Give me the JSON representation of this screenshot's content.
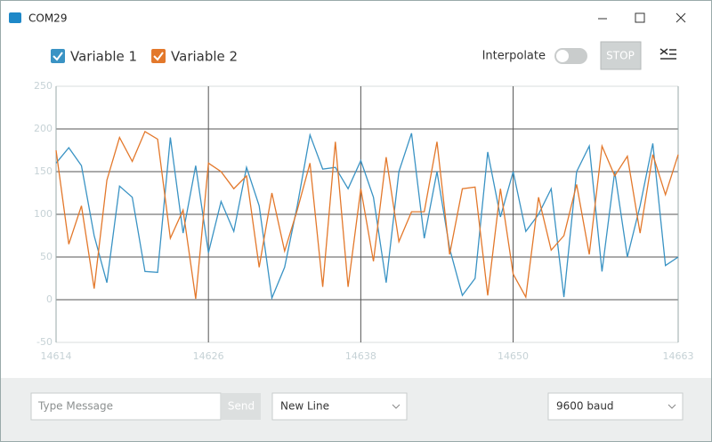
{
  "window": {
    "title": "COM29"
  },
  "toolbar": {
    "interpolate": "Interpolate",
    "stop": "STOP"
  },
  "chart_data": {
    "type": "line",
    "x": [
      14614,
      14615,
      14616,
      14617,
      14618,
      14619,
      14620,
      14621,
      14622,
      14623,
      14624,
      14625,
      14626,
      14627,
      14628,
      14629,
      14630,
      14631,
      14632,
      14633,
      14634,
      14635,
      14636,
      14637,
      14638,
      14639,
      14640,
      14641,
      14642,
      14643,
      14644,
      14645,
      14646,
      14647,
      14648,
      14649,
      14650,
      14651,
      14652,
      14653,
      14654,
      14655,
      14656,
      14657,
      14658,
      14659,
      14660,
      14661,
      14662,
      14663
    ],
    "series": [
      {
        "name": "Variable 1",
        "color": "#3a93c4",
        "values": [
          160,
          178,
          157,
          75,
          20,
          133,
          120,
          33,
          32,
          190,
          78,
          157,
          55,
          115,
          80,
          155,
          110,
          2,
          38,
          110,
          193,
          153,
          155,
          130,
          163,
          120,
          20,
          150,
          195,
          72,
          150,
          60,
          5,
          25,
          173,
          97,
          150,
          80,
          100,
          130,
          3,
          150,
          180,
          33,
          150,
          50,
          110,
          183,
          40,
          50
        ]
      },
      {
        "name": "Variable 2",
        "color": "#e3782b",
        "values": [
          175,
          65,
          110,
          13,
          140,
          190,
          162,
          197,
          188,
          72,
          105,
          1,
          160,
          150,
          130,
          145,
          38,
          125,
          57,
          105,
          160,
          15,
          185,
          15,
          130,
          45,
          167,
          68,
          103,
          103,
          185,
          53,
          130,
          132,
          5,
          130,
          30,
          3,
          120,
          58,
          75,
          135,
          53,
          180,
          145,
          168,
          78,
          170,
          123,
          170
        ]
      }
    ],
    "xlim": [
      14614,
      14663
    ],
    "xticks": [
      14614,
      14626,
      14638,
      14650,
      14663
    ],
    "ylim": [
      -50,
      250
    ],
    "yticks": [
      -50,
      0,
      50,
      100,
      150,
      200,
      250
    ],
    "grid": true
  },
  "footer": {
    "message_placeholder": "Type Message",
    "send": "Send",
    "line_ending": "New Line",
    "baud": "9600 baud"
  }
}
